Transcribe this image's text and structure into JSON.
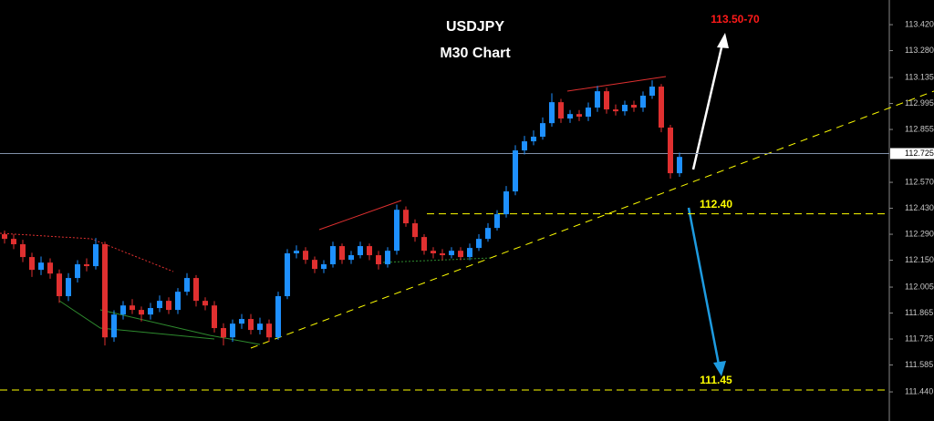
{
  "chart_data": {
    "type": "candlestick",
    "title": "USDJPY",
    "subtitle": "M30 Chart",
    "up_color": "#1e90ff",
    "down_color": "#e03030",
    "open": [
      112.29,
      112.265,
      112.236,
      112.167,
      112.098,
      112.137,
      112.078,
      111.956,
      112.054,
      112.128,
      112.118,
      112.236,
      111.734,
      111.857,
      111.906,
      111.882,
      111.857,
      111.892,
      111.931,
      111.882,
      111.98,
      112.054,
      111.931,
      111.906,
      111.784,
      111.734,
      111.808,
      111.833,
      111.774,
      111.808,
      111.734,
      111.956,
      112.187,
      112.201,
      112.152,
      112.103,
      112.128,
      112.226,
      112.152,
      112.177,
      112.226,
      112.177,
      112.128,
      112.201,
      112.422,
      112.349,
      112.275,
      112.201,
      112.187,
      112.177,
      112.201,
      112.167,
      112.216,
      112.265,
      112.324,
      112.398,
      112.521,
      112.742,
      112.791,
      112.816,
      112.889,
      113.002,
      112.914,
      112.938,
      112.924,
      112.973,
      113.061,
      112.963,
      112.953,
      112.988,
      112.973,
      113.037,
      113.086,
      112.865,
      112.619
    ],
    "high": [
      112.31,
      112.29,
      112.26,
      112.19,
      112.17,
      112.16,
      112.1,
      112.08,
      112.15,
      112.16,
      112.27,
      112.25,
      111.88,
      111.93,
      111.94,
      111.9,
      111.92,
      111.96,
      111.95,
      112.0,
      112.08,
      112.07,
      111.95,
      111.93,
      111.81,
      111.83,
      111.86,
      111.86,
      111.84,
      111.83,
      111.98,
      112.21,
      112.23,
      112.22,
      112.17,
      112.15,
      112.25,
      112.24,
      112.2,
      112.25,
      112.24,
      112.2,
      112.22,
      112.45,
      112.44,
      112.37,
      112.29,
      112.22,
      112.21,
      112.22,
      112.22,
      112.24,
      112.29,
      112.35,
      112.42,
      112.55,
      112.77,
      112.82,
      112.85,
      112.92,
      113.05,
      113.02,
      112.96,
      112.96,
      113.0,
      113.09,
      113.08,
      112.99,
      113.01,
      113.01,
      113.06,
      113.12,
      113.1,
      112.88,
      112.73
    ],
    "low": [
      112.24,
      112.21,
      112.14,
      112.06,
      112.07,
      112.05,
      111.92,
      111.93,
      112.03,
      112.09,
      112.1,
      111.69,
      111.71,
      111.83,
      111.86,
      111.82,
      111.83,
      111.87,
      111.86,
      111.86,
      111.96,
      111.9,
      111.88,
      111.76,
      111.69,
      111.71,
      111.78,
      111.75,
      111.75,
      111.71,
      111.72,
      111.94,
      112.16,
      112.13,
      112.08,
      112.08,
      112.11,
      112.13,
      112.13,
      112.16,
      112.15,
      112.1,
      112.11,
      112.18,
      112.33,
      112.25,
      112.18,
      112.16,
      112.15,
      112.16,
      112.15,
      112.15,
      112.2,
      112.25,
      112.31,
      112.38,
      112.5,
      112.72,
      112.77,
      112.8,
      112.87,
      112.89,
      112.89,
      112.9,
      112.9,
      112.95,
      112.94,
      112.93,
      112.93,
      112.95,
      112.95,
      113.02,
      112.84,
      112.59,
      112.6
    ],
    "close": [
      112.265,
      112.236,
      112.167,
      112.098,
      112.137,
      112.078,
      111.956,
      112.054,
      112.128,
      112.118,
      112.236,
      111.734,
      111.857,
      111.906,
      111.882,
      111.857,
      111.892,
      111.931,
      111.882,
      111.98,
      112.054,
      111.931,
      111.906,
      111.784,
      111.734,
      111.808,
      111.833,
      111.774,
      111.808,
      111.734,
      111.956,
      112.187,
      112.201,
      112.152,
      112.103,
      112.128,
      112.226,
      112.152,
      112.177,
      112.226,
      112.177,
      112.128,
      112.201,
      112.422,
      112.349,
      112.275,
      112.201,
      112.187,
      112.177,
      112.201,
      112.167,
      112.216,
      112.265,
      112.324,
      112.398,
      112.521,
      112.742,
      112.791,
      112.816,
      112.889,
      113.002,
      112.914,
      112.938,
      112.924,
      112.973,
      113.061,
      112.963,
      112.953,
      112.988,
      112.973,
      113.037,
      113.086,
      112.865,
      112.619,
      112.707
    ],
    "ylim": [
      111.283,
      113.553
    ],
    "yticks": [
      {
        "value": 113.42,
        "label": "113.420"
      },
      {
        "value": 113.28,
        "label": "113.280"
      },
      113.135,
      112.995,
      112.855,
      {
        "value": 112.57,
        "label": "112.570"
      },
      {
        "value": 112.43,
        "label": "112.430"
      },
      {
        "value": 112.29,
        "label": "112.290"
      },
      {
        "value": 112.15,
        "label": "112.150"
      },
      112.005,
      111.865,
      111.725,
      111.585,
      {
        "value": 111.44,
        "label": "111.440"
      }
    ],
    "current_price": 112.725,
    "levels": [
      {
        "value": 112.4,
        "label": "112.40",
        "color": "#ffff00"
      },
      {
        "value": 111.45,
        "label": "111.45",
        "color": "#ffff00"
      }
    ],
    "target_label": "113.50-70"
  }
}
